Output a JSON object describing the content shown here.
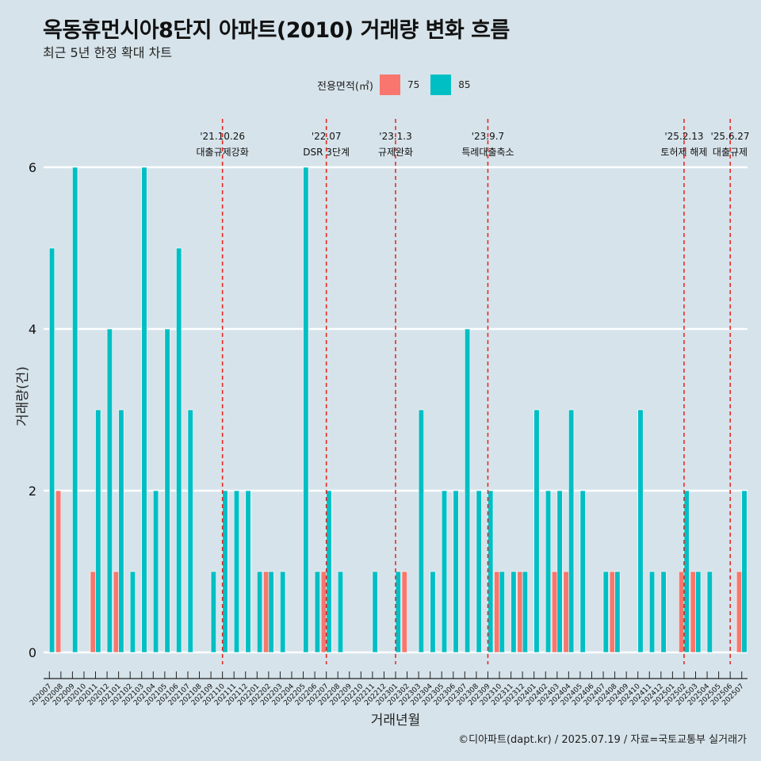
{
  "title": "옥동휴먼시아8단지 아파트(2010) 거래량 변화 흐름",
  "subtitle": "최근 5년 한정 확대 차트",
  "caption": "©디아파트(dapt.kr) / 2025.07.19 / 자료=국토교통부 실거래가",
  "colors": {
    "75": "#f8766d",
    "85": "#00bfc4",
    "background": "#d6e3ea",
    "event_line": "#e8211c"
  },
  "chart_data": {
    "type": "bar",
    "title": "옥동휴먼시아8단지 아파트(2010) 거래량 변화 흐름",
    "xlabel": "거래년월",
    "ylabel": "거래량(건)",
    "ylim": [
      0,
      6
    ],
    "yticks": [
      0,
      2,
      4,
      6
    ],
    "legend": {
      "title": "전용면적(㎡)",
      "position": "top",
      "entries": [
        "75",
        "85"
      ]
    },
    "categories": [
      "202007",
      "202008",
      "202009",
      "202010",
      "202011",
      "202012",
      "202101",
      "202102",
      "202103",
      "202104",
      "202105",
      "202106",
      "202107",
      "202108",
      "202109",
      "202110",
      "202111",
      "202112",
      "202201",
      "202202",
      "202203",
      "202204",
      "202205",
      "202206",
      "202207",
      "202208",
      "202209",
      "202210",
      "202211",
      "202212",
      "202301",
      "202302",
      "202303",
      "202304",
      "202305",
      "202306",
      "202307",
      "202308",
      "202309",
      "202310",
      "202311",
      "202312",
      "202401",
      "202402",
      "202403",
      "202404",
      "202405",
      "202406",
      "202407",
      "202408",
      "202409",
      "202410",
      "202411",
      "202412",
      "202501",
      "202502",
      "202503",
      "202504",
      "202505",
      "202506",
      "202507"
    ],
    "series": [
      {
        "name": "75",
        "values": [
          0,
          2,
          0,
          0,
          1,
          0,
          1,
          0,
          0,
          0,
          0,
          0,
          0,
          0,
          0,
          0,
          0,
          0,
          0,
          1,
          0,
          0,
          0,
          0,
          1,
          0,
          0,
          0,
          0,
          0,
          0,
          1,
          0,
          0,
          0,
          0,
          0,
          0,
          0,
          1,
          0,
          1,
          0,
          0,
          1,
          1,
          0,
          0,
          0,
          1,
          0,
          0,
          0,
          0,
          0,
          1,
          1,
          0,
          0,
          0,
          1
        ]
      },
      {
        "name": "85",
        "values": [
          5,
          0,
          6,
          0,
          3,
          4,
          3,
          1,
          6,
          2,
          4,
          5,
          3,
          0,
          1,
          2,
          2,
          2,
          1,
          1,
          1,
          0,
          6,
          1,
          2,
          1,
          0,
          0,
          1,
          0,
          1,
          0,
          3,
          1,
          2,
          2,
          4,
          2,
          2,
          1,
          1,
          1,
          3,
          2,
          2,
          3,
          2,
          0,
          1,
          1,
          0,
          3,
          1,
          1,
          0,
          2,
          1,
          1,
          0,
          0,
          2
        ]
      }
    ],
    "events": [
      {
        "month": "202110",
        "date": "'21.10.26",
        "label": "대출규제강화"
      },
      {
        "month": "202207",
        "date": "'22.07",
        "label": "DSR 3단계"
      },
      {
        "month": "202301",
        "date": "'23.1.3",
        "label": "규제완화"
      },
      {
        "month": "202309",
        "date": "'23.9.7",
        "label": "특례대출축소"
      },
      {
        "month": "202502",
        "date": "'25.2.13",
        "label": "토허제 해제"
      },
      {
        "month": "202506",
        "date": "'25.6.27",
        "label": "대출규제"
      }
    ]
  }
}
